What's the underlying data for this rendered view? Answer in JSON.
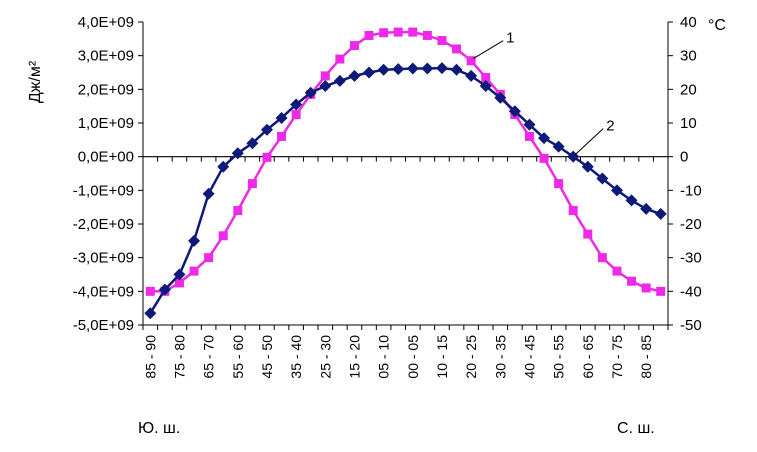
{
  "chart_data": {
    "type": "line",
    "left_axis": {
      "label": "Дж/м²",
      "ylim": [
        -5000000000,
        4000000000
      ],
      "ticks": [
        "4,0E+09",
        "3,0E+09",
        "2,0E+09",
        "1,0E+09",
        "0,0E+00",
        "-1,0E+09",
        "-2,0E+09",
        "-3,0E+09",
        "-4,0E+09",
        "-5,0E+09"
      ]
    },
    "right_axis": {
      "label": "°C",
      "ylim": [
        -50,
        40
      ],
      "ticks": [
        "40",
        "30",
        "20",
        "10",
        "0",
        "-10",
        "-20",
        "-30",
        "-40",
        "-50"
      ]
    },
    "categories": [
      "85 - 90",
      "80 - 85",
      "75 - 80",
      "70 - 75",
      "65 - 70",
      "60 - 65",
      "55 - 60",
      "50 - 55",
      "45 - 50",
      "40 - 45",
      "35 - 40",
      "30 - 35",
      "25 - 30",
      "20 - 25",
      "15 - 20",
      "10 - 15",
      "05 - 10",
      "00 - 05",
      "00 - 05",
      "05 - 10",
      "10 - 15",
      "15 - 20",
      "20 - 25",
      "25 - 30",
      "30 - 35",
      "35 - 40",
      "40 - 45",
      "45 - 50",
      "50 - 55",
      "55 - 60",
      "60 - 65",
      "65 - 70",
      "70 - 75",
      "75 - 80",
      "80 - 85",
      "85 - 90"
    ],
    "category_labels_shown": [
      "85 - 90",
      "75 - 80",
      "65 - 70",
      "55 - 60",
      "45 - 50",
      "35 - 40",
      "25 - 30",
      "15 - 20",
      "05 - 10",
      "00 - 05",
      "10 - 15",
      "20 - 25",
      "30 - 35",
      "40 - 45",
      "50 - 55",
      "60 - 65",
      "70 - 75",
      "80 - 85"
    ],
    "category_labels_shown_index": [
      0,
      2,
      4,
      6,
      8,
      10,
      12,
      14,
      16,
      18,
      20,
      22,
      24,
      26,
      28,
      30,
      32,
      34
    ],
    "region_labels": {
      "south": "Ю. ш.",
      "north": "С. ш."
    },
    "series": [
      {
        "label": "1",
        "axis": "left",
        "color": "#ee2ae6",
        "marker": "square",
        "values": [
          -4000000000.0,
          -4000000000.0,
          -3750000000.0,
          -3400000000.0,
          -3000000000.0,
          -2350000000.0,
          -1600000000.0,
          -800000000.0,
          -20000000.0,
          600000000.0,
          1250000000.0,
          1850000000.0,
          2400000000.0,
          2900000000.0,
          3300000000.0,
          3600000000.0,
          3680000000.0,
          3700000000.0,
          3700000000.0,
          3600000000.0,
          3450000000.0,
          3200000000.0,
          2850000000.0,
          2350000000.0,
          1850000000.0,
          1250000000.0,
          600000000.0,
          -50000000.0,
          -800000000.0,
          -1600000000.0,
          -2300000000.0,
          -3000000000.0,
          -3400000000.0,
          -3700000000.0,
          -3900000000.0,
          -4000000000.0
        ]
      },
      {
        "label": "2",
        "axis": "right",
        "color": "#0d1a78",
        "marker": "diamond",
        "values": [
          -46.5,
          -39.5,
          -35,
          -25,
          -11,
          -3,
          1,
          4,
          8,
          11.5,
          15.5,
          19,
          21,
          22.5,
          24,
          25,
          25.8,
          26,
          26.2,
          26.2,
          26.3,
          25.8,
          24,
          21,
          17.5,
          13.5,
          9.5,
          5.5,
          3,
          0,
          -3,
          -6.5,
          -10,
          -13,
          -15.5,
          -17
        ]
      }
    ],
    "gridlines": false,
    "legend": "none"
  }
}
